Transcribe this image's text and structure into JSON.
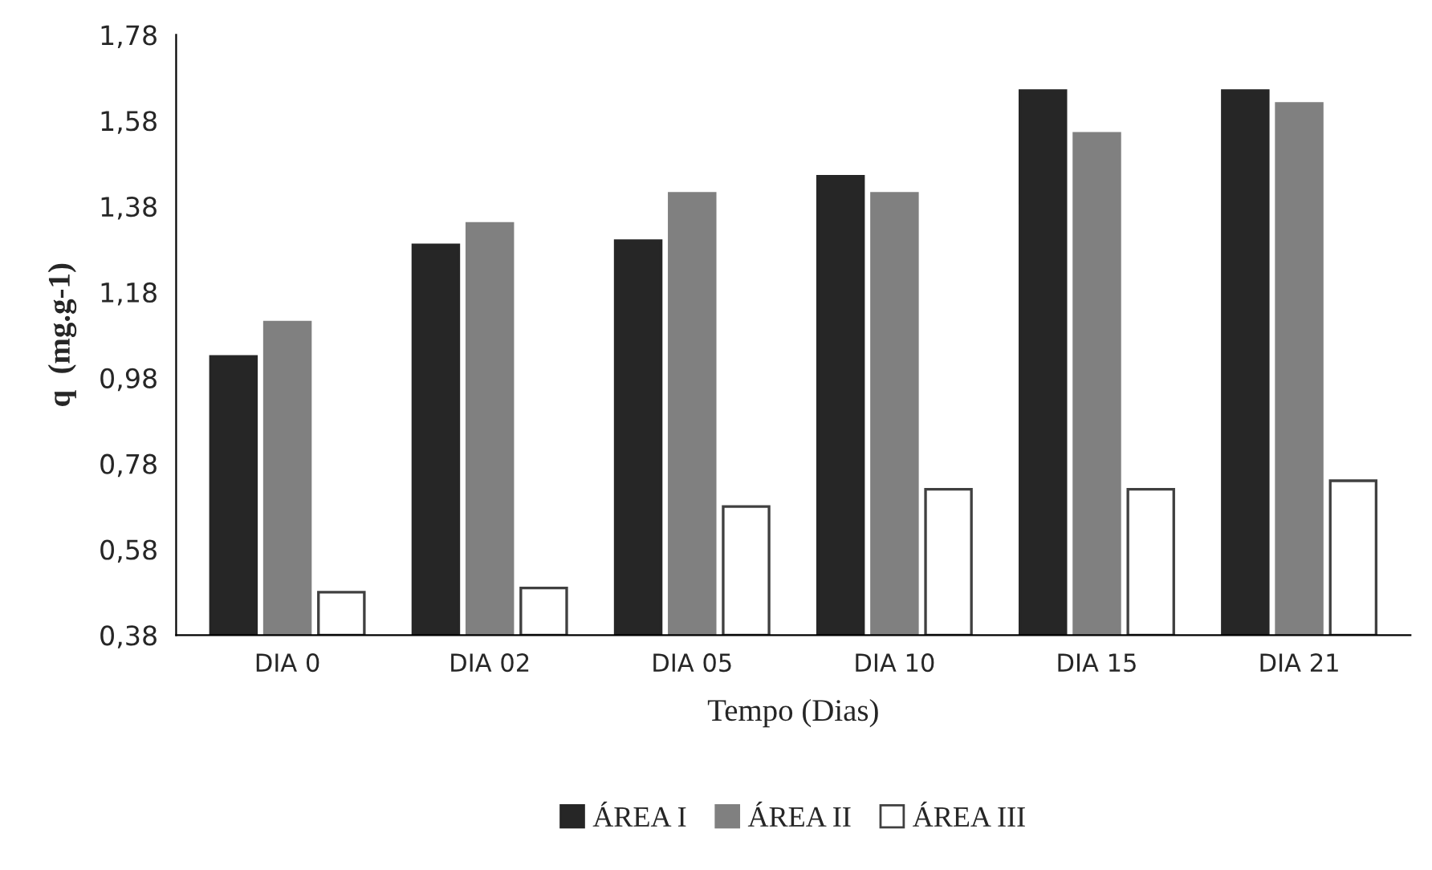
{
  "chart_data": {
    "type": "bar",
    "xlabel": "Tempo (Dias)",
    "ylabel": "q  (mg.g-1)",
    "categories": [
      "DIA 0",
      "DIA 02",
      "DIA 05",
      "DIA 10",
      "DIA 15",
      "DIA 21"
    ],
    "series": [
      {
        "name": "ÁREA I",
        "color": "#262626",
        "values": [
          1.03,
          1.29,
          1.3,
          1.45,
          1.65,
          1.65
        ]
      },
      {
        "name": "ÁREA II",
        "color": "#808080",
        "values": [
          1.11,
          1.34,
          1.41,
          1.41,
          1.55,
          1.62
        ]
      },
      {
        "name": "ÁREA III",
        "color": "#ffffff",
        "values": [
          0.48,
          0.49,
          0.68,
          0.72,
          0.72,
          0.74
        ]
      }
    ],
    "ylim": [
      0.38,
      1.78
    ],
    "yticks": [
      {
        "value": 0.38,
        "label": "0,38"
      },
      {
        "value": 0.58,
        "label": "0,58"
      },
      {
        "value": 0.78,
        "label": "0,78"
      },
      {
        "value": 0.98,
        "label": "0,98"
      },
      {
        "value": 1.18,
        "label": "1,18"
      },
      {
        "value": 1.38,
        "label": "1,38"
      },
      {
        "value": 1.58,
        "label": "1,58"
      },
      {
        "value": 1.78,
        "label": "1,78"
      }
    ],
    "grid": false,
    "legend": "bottom"
  }
}
